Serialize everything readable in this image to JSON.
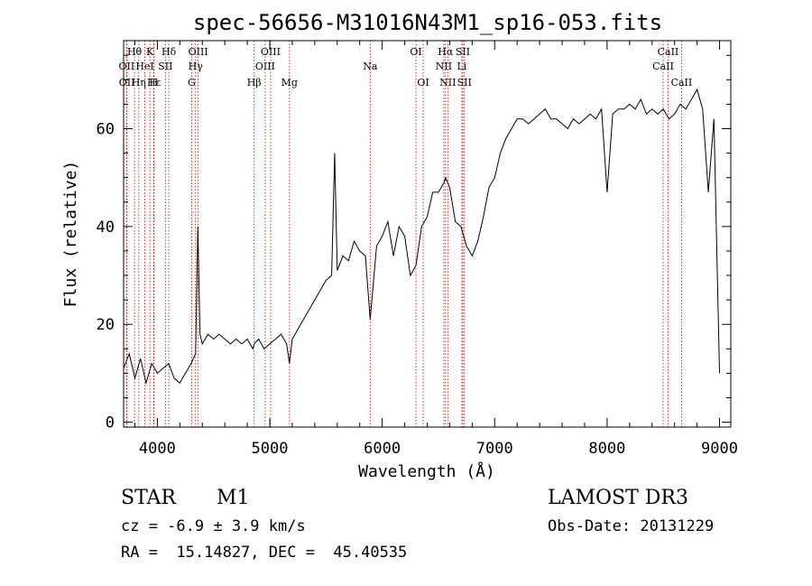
{
  "chart_data": {
    "type": "line",
    "title": "spec-56656-M31016N43M1_sp16-053.fits",
    "xlabel": "Wavelength (Å)",
    "ylabel": "Flux (relative)",
    "xlim": [
      3700,
      9100
    ],
    "ylim": [
      -1,
      78
    ],
    "x_ticks": [
      4000,
      5000,
      6000,
      7000,
      8000,
      9000
    ],
    "y_ticks": [
      0,
      20,
      40,
      60
    ],
    "grid": false,
    "series": [
      {
        "name": "spectrum",
        "x": [
          3700,
          3750,
          3800,
          3850,
          3900,
          3950,
          4000,
          4050,
          4100,
          4150,
          4200,
          4250,
          4300,
          4340,
          4360,
          4380,
          4400,
          4450,
          4500,
          4550,
          4600,
          4650,
          4700,
          4750,
          4800,
          4850,
          4861,
          4900,
          4950,
          5000,
          5050,
          5100,
          5150,
          5175,
          5200,
          5250,
          5300,
          5350,
          5400,
          5450,
          5500,
          5550,
          5577,
          5600,
          5650,
          5700,
          5750,
          5800,
          5850,
          5893,
          5950,
          6000,
          6050,
          6100,
          6150,
          6200,
          6250,
          6300,
          6350,
          6400,
          6450,
          6500,
          6550,
          6563,
          6600,
          6650,
          6700,
          6750,
          6800,
          6850,
          6900,
          6950,
          7000,
          7050,
          7100,
          7150,
          7200,
          7250,
          7300,
          7350,
          7400,
          7450,
          7500,
          7550,
          7600,
          7650,
          7700,
          7750,
          7800,
          7850,
          7900,
          7950,
          8000,
          8050,
          8100,
          8150,
          8200,
          8250,
          8300,
          8350,
          8400,
          8450,
          8500,
          8550,
          8600,
          8650,
          8700,
          8750,
          8800,
          8850,
          8900,
          8950,
          9000
        ],
        "y": [
          11,
          14,
          9,
          13,
          8,
          12,
          10,
          11,
          12,
          9,
          8,
          10,
          12,
          14,
          40,
          18,
          16,
          18,
          17,
          18,
          17,
          16,
          17,
          16,
          17,
          15,
          16,
          17,
          15,
          16,
          17,
          18,
          16,
          12,
          17,
          19,
          21,
          23,
          25,
          27,
          29,
          30,
          55,
          31,
          34,
          33,
          37,
          35,
          34,
          21,
          36,
          38,
          41,
          34,
          40,
          38,
          30,
          32,
          40,
          42,
          47,
          47,
          49,
          50,
          48,
          41,
          40,
          36,
          34,
          37,
          42,
          48,
          50,
          55,
          58,
          60,
          62,
          62,
          61,
          62,
          63,
          64,
          62,
          62,
          61,
          60,
          62,
          61,
          62,
          63,
          62,
          64,
          47,
          63,
          64,
          64,
          65,
          64,
          66,
          63,
          64,
          63,
          64,
          62,
          63,
          65,
          64,
          66,
          68,
          64,
          47,
          62,
          10
        ]
      }
    ],
    "lines_top": [
      {
        "label": "Hθ",
        "x": 3797
      },
      {
        "label": "K",
        "x": 3934
      },
      {
        "label": "Hδ",
        "x": 4102
      },
      {
        "label": "OIII",
        "x": 4363
      },
      {
        "label": "OIII",
        "x": 5007
      },
      {
        "label": "OI",
        "x": 6300
      },
      {
        "label": "Hα",
        "x": 6563
      },
      {
        "label": "SII",
        "x": 6717
      },
      {
        "label": "CaII",
        "x": 8542
      }
    ],
    "lines_mid": [
      {
        "label": "OII",
        "x": 3727
      },
      {
        "label": "HeI",
        "x": 3889
      },
      {
        "label": "SII",
        "x": 4072
      },
      {
        "label": "Hγ",
        "x": 4340
      },
      {
        "label": "OIII",
        "x": 4959
      },
      {
        "label": "Na",
        "x": 5893
      },
      {
        "label": "NII",
        "x": 6548
      },
      {
        "label": "Li",
        "x": 6708
      },
      {
        "label": "CaII",
        "x": 8498
      }
    ],
    "lines_bot": [
      {
        "label": "OII",
        "x": 3729
      },
      {
        "label": "Hε",
        "x": 3970
      },
      {
        "label": "Hη",
        "x": 3835
      },
      {
        "label": "H",
        "x": 3968
      },
      {
        "label": "G",
        "x": 4305
      },
      {
        "label": "Hβ",
        "x": 4861
      },
      {
        "label": "Mg",
        "x": 5175
      },
      {
        "label": "OI",
        "x": 6364
      },
      {
        "label": "NII",
        "x": 6583
      },
      {
        "label": "SII",
        "x": 6731
      },
      {
        "label": "CaII",
        "x": 8662
      }
    ]
  },
  "info": {
    "object_type": "STAR",
    "subclass": "M1",
    "survey": "LAMOST DR3",
    "cz": "cz = -6.9 ± 3.9 km/s",
    "obs_date": "Obs-Date: 20131229",
    "coords": "RA =  15.14827, DEC =  45.40535"
  },
  "colors": {
    "spectrum": "#000000",
    "line_marker": "#cc0000",
    "axes": "#000000"
  }
}
